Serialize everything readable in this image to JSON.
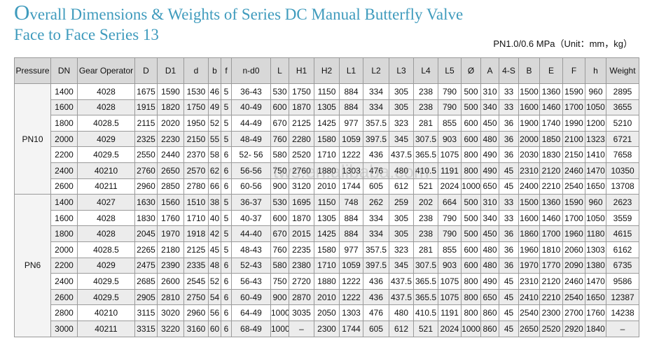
{
  "header": {
    "title": "Overall Dimensions & Weights of Series DC Manual Butterfly Valve",
    "subtitle": "Face to Face Series 13",
    "unit_note": "PN1.0/0.6 MPa（Unit：mm，kg）"
  },
  "watermark": "tws.en.alibaba.com",
  "table": {
    "columns": [
      "Pressure",
      "DN",
      "Gear Operator",
      "D",
      "D1",
      "d",
      "b",
      "f",
      "n-d0",
      "L",
      "H1",
      "H2",
      "L1",
      "L2",
      "L3",
      "L4",
      "L5",
      "Ø",
      "A",
      "4-S",
      "B",
      "E",
      "F",
      "h",
      "Weight"
    ],
    "groups": [
      {
        "pressure": "PN10",
        "rows": [
          [
            "1400",
            "4028",
            "1675",
            "1590",
            "1530",
            "46",
            "5",
            "36-43",
            "530",
            "1750",
            "1150",
            "884",
            "334",
            "305",
            "238",
            "790",
            "500",
            "310",
            "33",
            "1500",
            "1360",
            "1590",
            "960",
            "2895"
          ],
          [
            "1600",
            "4028",
            "1915",
            "1820",
            "1750",
            "49",
            "5",
            "40-49",
            "600",
            "1870",
            "1305",
            "884",
            "334",
            "305",
            "238",
            "790",
            "500",
            "340",
            "33",
            "1600",
            "1460",
            "1700",
            "1050",
            "3655"
          ],
          [
            "1800",
            "4028.5",
            "2115",
            "2020",
            "1950",
            "52",
            "5",
            "44-49",
            "670",
            "2125",
            "1425",
            "977",
            "357.5",
            "323",
            "281",
            "855",
            "600",
            "450",
            "36",
            "1900",
            "1740",
            "1990",
            "1200",
            "5210"
          ],
          [
            "2000",
            "4029",
            "2325",
            "2230",
            "2150",
            "55",
            "5",
            "48-49",
            "760",
            "2280",
            "1580",
            "1059",
            "397.5",
            "345",
            "307.5",
            "903",
            "600",
            "480",
            "36",
            "2000",
            "1850",
            "2100",
            "1323",
            "6721"
          ],
          [
            "2200",
            "4029.5",
            "2550",
            "2440",
            "2370",
            "58",
            "6",
            "52- 56",
            "580",
            "2520",
            "1710",
            "1222",
            "436",
            "437.5",
            "365.5",
            "1075",
            "800",
            "490",
            "36",
            "2030",
            "1830",
            "2150",
            "1410",
            "7658"
          ],
          [
            "2400",
            "40210",
            "2760",
            "2650",
            "2570",
            "62",
            "6",
            "56-56",
            "750",
            "2760",
            "1880",
            "1303",
            "476",
            "480",
            "410.5",
            "1191",
            "800",
            "490",
            "45",
            "2310",
            "2120",
            "2460",
            "1470",
            "10350"
          ],
          [
            "2600",
            "40211",
            "2960",
            "2850",
            "2780",
            "66",
            "6",
            "60-56",
            "900",
            "3120",
            "2010",
            "1744",
            "605",
            "612",
            "521",
            "2024",
            "1000",
            "650",
            "45",
            "2400",
            "2210",
            "2540",
            "1650",
            "13708"
          ]
        ]
      },
      {
        "pressure": "PN6",
        "rows": [
          [
            "1400",
            "4027",
            "1630",
            "1560",
            "1510",
            "38",
            "5",
            "36-37",
            "530",
            "1695",
            "1150",
            "748",
            "262",
            "259",
            "202",
            "664",
            "500",
            "310",
            "33",
            "1500",
            "1360",
            "1590",
            "960",
            "2623"
          ],
          [
            "1600",
            "4028",
            "1830",
            "1760",
            "1710",
            "40",
            "5",
            "40-37",
            "600",
            "1870",
            "1305",
            "884",
            "334",
            "305",
            "238",
            "790",
            "500",
            "340",
            "33",
            "1600",
            "1460",
            "1700",
            "1050",
            "3559"
          ],
          [
            "1800",
            "4028",
            "2045",
            "1970",
            "1918",
            "42",
            "5",
            "44-40",
            "670",
            "2015",
            "1425",
            "884",
            "334",
            "305",
            "238",
            "790",
            "500",
            "450",
            "36",
            "1860",
            "1700",
            "1960",
            "1180",
            "4615"
          ],
          [
            "2000",
            "4028.5",
            "2265",
            "2180",
            "2125",
            "45",
            "5",
            "48-43",
            "760",
            "2235",
            "1580",
            "977",
            "357.5",
            "323",
            "281",
            "855",
            "600",
            "480",
            "36",
            "1960",
            "1810",
            "2060",
            "1303",
            "6162"
          ],
          [
            "2200",
            "4029",
            "2475",
            "2390",
            "2335",
            "48",
            "6",
            "52-43",
            "580",
            "2380",
            "1710",
            "1059",
            "397.5",
            "345",
            "307.5",
            "903",
            "600",
            "480",
            "36",
            "1970",
            "1770",
            "2090",
            "1380",
            "6735"
          ],
          [
            "2400",
            "4029.5",
            "2685",
            "2600",
            "2545",
            "52",
            "6",
            "56-43",
            "750",
            "2720",
            "1880",
            "1222",
            "436",
            "437.5",
            "365.5",
            "1075",
            "800",
            "490",
            "45",
            "2310",
            "2120",
            "2460",
            "1470",
            "9586"
          ],
          [
            "2600",
            "4029.5",
            "2905",
            "2810",
            "2750",
            "54",
            "6",
            "60-49",
            "900",
            "2870",
            "2010",
            "1222",
            "436",
            "437.5",
            "365.5",
            "1075",
            "800",
            "650",
            "45",
            "2410",
            "2210",
            "2540",
            "1650",
            "12387"
          ],
          [
            "2800",
            "40210",
            "3115",
            "3020",
            "2960",
            "56",
            "6",
            "64-49",
            "1000",
            "3035",
            "2050",
            "1303",
            "476",
            "480",
            "410.5",
            "1191",
            "800",
            "860",
            "45",
            "2540",
            "2300",
            "2700",
            "1760",
            "14238"
          ],
          [
            "3000",
            "40211",
            "3315",
            "3220",
            "3160",
            "60",
            "6",
            "68-49",
            "1000",
            "–",
            "2300",
            "1744",
            "605",
            "612",
            "521",
            "2024",
            "1000",
            "860",
            "45",
            "2650",
            "2520",
            "2920",
            "1840",
            "–"
          ]
        ]
      }
    ]
  }
}
